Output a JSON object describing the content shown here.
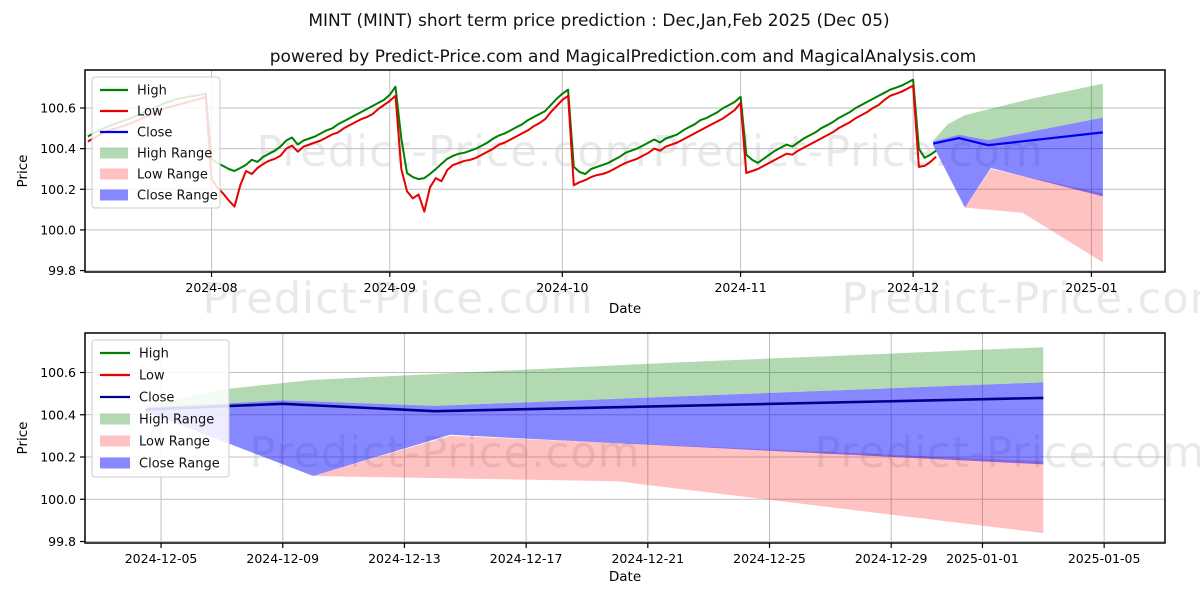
{
  "figure": {
    "title": "MINT (MINT) short term price prediction : Dec,Jan,Feb 2025 (Dec 05)",
    "subtitle": "powered by Predict-Price.com and MagicalPrediction.com and MagicalAnalysis.com",
    "watermark": "Predict-Price.com",
    "background": "#ffffff"
  },
  "colors": {
    "high_line": "#008000",
    "low_line": "#e60000",
    "close_line_top_chart": "#0000ee",
    "close_line_bottom_chart": "#00008b",
    "high_range_fill": "rgba(0,128,0,0.30)",
    "low_range_fill": "rgba(255,0,0,0.24)",
    "close_range_fill": "rgba(0,0,255,0.47)",
    "grid": "#bfbfbf",
    "frame": "#000000",
    "watermark": "#e9e9e9"
  },
  "chart_data": [
    {
      "type": "line",
      "name": "price-history-with-prediction",
      "xlabel": "Date",
      "ylabel": "Price",
      "x_unit": "days since 2024-07-10",
      "xlim_days": [
        0,
        187.8
      ],
      "ylim": [
        99.793,
        100.787
      ],
      "grid": true,
      "legend_position": "upper-left",
      "close_color": "#0000ee",
      "legend": [
        "High",
        "Low",
        "Close",
        "High Range",
        "Low Range",
        "Close Range"
      ],
      "yticks": [
        {
          "label": "100.6",
          "v": 100.6
        },
        {
          "label": "100.4",
          "v": 100.4
        },
        {
          "label": "100.2",
          "v": 100.2
        },
        {
          "label": "100.0",
          "v": 100.0
        },
        {
          "label": "99.8",
          "v": 99.8
        }
      ],
      "xticks": [
        {
          "label": "2024-08",
          "d": 22
        },
        {
          "label": "2024-09",
          "d": 53
        },
        {
          "label": "2024-10",
          "d": 83
        },
        {
          "label": "2024-11",
          "d": 114
        },
        {
          "label": "2024-12",
          "d": 144
        },
        {
          "label": "2025-01",
          "d": 175
        }
      ],
      "series": {
        "high_low_history": [
          [
            0.5,
            100.46,
            100.435
          ],
          [
            2,
            100.485,
            100.46
          ],
          [
            4,
            100.51,
            100.49
          ],
          [
            6,
            100.53,
            100.505
          ],
          [
            8,
            100.55,
            100.525
          ],
          [
            10,
            100.575,
            100.55
          ],
          [
            12,
            100.6,
            100.575
          ],
          [
            14,
            100.625,
            100.6
          ],
          [
            16,
            100.645,
            100.615
          ],
          [
            18,
            100.655,
            100.63
          ],
          [
            20,
            100.665,
            100.645
          ],
          [
            21,
            100.67,
            100.655
          ],
          [
            22,
            100.35,
            100.25
          ],
          [
            23,
            100.33,
            100.21
          ],
          [
            24,
            100.315,
            100.18
          ],
          [
            25,
            100.3,
            100.145
          ],
          [
            26,
            100.29,
            100.115
          ],
          [
            27,
            100.305,
            100.22
          ],
          [
            28,
            100.32,
            100.29
          ],
          [
            29,
            100.345,
            100.275
          ],
          [
            30,
            100.335,
            100.305
          ],
          [
            31,
            100.36,
            100.325
          ],
          [
            32,
            100.375,
            100.34
          ],
          [
            33,
            100.39,
            100.35
          ],
          [
            34,
            100.41,
            100.365
          ],
          [
            35,
            100.44,
            100.4
          ],
          [
            36,
            100.455,
            100.415
          ],
          [
            37,
            100.42,
            100.385
          ],
          [
            38,
            100.44,
            100.41
          ],
          [
            39,
            100.45,
            100.42
          ],
          [
            40,
            100.46,
            100.43
          ],
          [
            41,
            100.475,
            100.44
          ],
          [
            42,
            100.49,
            100.455
          ],
          [
            43,
            100.5,
            100.47
          ],
          [
            44,
            100.52,
            100.48
          ],
          [
            45,
            100.535,
            100.5
          ],
          [
            46,
            100.55,
            100.515
          ],
          [
            47,
            100.565,
            100.53
          ],
          [
            48,
            100.58,
            100.545
          ],
          [
            49,
            100.595,
            100.555
          ],
          [
            50,
            100.61,
            100.57
          ],
          [
            51,
            100.625,
            100.595
          ],
          [
            52,
            100.64,
            100.615
          ],
          [
            53,
            100.665,
            100.635
          ],
          [
            54,
            100.705,
            100.66
          ],
          [
            55,
            100.45,
            100.3
          ],
          [
            56,
            100.28,
            100.19
          ],
          [
            57,
            100.26,
            100.155
          ],
          [
            58,
            100.25,
            100.175
          ],
          [
            59,
            100.255,
            100.09
          ],
          [
            60,
            100.275,
            100.21
          ],
          [
            61,
            100.3,
            100.255
          ],
          [
            62,
            100.325,
            100.24
          ],
          [
            63,
            100.35,
            100.295
          ],
          [
            64,
            100.365,
            100.32
          ],
          [
            65,
            100.375,
            100.33
          ],
          [
            66,
            100.38,
            100.34
          ],
          [
            67,
            100.39,
            100.345
          ],
          [
            68,
            100.4,
            100.355
          ],
          [
            69,
            100.415,
            100.37
          ],
          [
            70,
            100.43,
            100.385
          ],
          [
            71,
            100.45,
            100.4
          ],
          [
            72,
            100.465,
            100.42
          ],
          [
            73,
            100.475,
            100.43
          ],
          [
            74,
            100.49,
            100.445
          ],
          [
            75,
            100.505,
            100.46
          ],
          [
            76,
            100.52,
            100.475
          ],
          [
            77,
            100.54,
            100.49
          ],
          [
            78,
            100.555,
            100.51
          ],
          [
            79,
            100.57,
            100.525
          ],
          [
            80,
            100.585,
            100.545
          ],
          [
            81,
            100.615,
            100.58
          ],
          [
            82,
            100.645,
            100.61
          ],
          [
            83,
            100.67,
            100.64
          ],
          [
            84,
            100.69,
            100.66
          ],
          [
            85,
            100.31,
            100.22
          ],
          [
            86,
            100.285,
            100.235
          ],
          [
            87,
            100.275,
            100.245
          ],
          [
            88,
            100.3,
            100.26
          ],
          [
            89,
            100.31,
            100.27
          ],
          [
            90,
            100.32,
            100.275
          ],
          [
            91,
            100.33,
            100.285
          ],
          [
            92,
            100.345,
            100.3
          ],
          [
            93,
            100.36,
            100.315
          ],
          [
            94,
            100.38,
            100.33
          ],
          [
            95,
            100.39,
            100.34
          ],
          [
            96,
            100.4,
            100.35
          ],
          [
            97,
            100.415,
            100.365
          ],
          [
            98,
            100.43,
            100.38
          ],
          [
            99,
            100.445,
            100.4
          ],
          [
            100,
            100.43,
            100.39
          ],
          [
            101,
            100.45,
            100.41
          ],
          [
            102,
            100.46,
            100.42
          ],
          [
            103,
            100.47,
            100.43
          ],
          [
            104,
            100.49,
            100.445
          ],
          [
            105,
            100.505,
            100.46
          ],
          [
            106,
            100.52,
            100.475
          ],
          [
            107,
            100.54,
            100.49
          ],
          [
            108,
            100.55,
            100.505
          ],
          [
            109,
            100.565,
            100.52
          ],
          [
            110,
            100.58,
            100.535
          ],
          [
            111,
            100.6,
            100.55
          ],
          [
            112,
            100.615,
            100.57
          ],
          [
            113,
            100.63,
            100.59
          ],
          [
            114,
            100.655,
            100.625
          ],
          [
            115,
            100.37,
            100.28
          ],
          [
            116,
            100.345,
            100.29
          ],
          [
            117,
            100.33,
            100.3
          ],
          [
            118,
            100.35,
            100.315
          ],
          [
            119,
            100.37,
            100.33
          ],
          [
            120,
            100.39,
            100.345
          ],
          [
            121,
            100.405,
            100.36
          ],
          [
            122,
            100.42,
            100.375
          ],
          [
            123,
            100.41,
            100.37
          ],
          [
            124,
            100.43,
            100.39
          ],
          [
            125,
            100.45,
            100.405
          ],
          [
            126,
            100.465,
            100.42
          ],
          [
            127,
            100.48,
            100.435
          ],
          [
            128,
            100.5,
            100.45
          ],
          [
            129,
            100.515,
            100.465
          ],
          [
            130,
            100.53,
            100.48
          ],
          [
            131,
            100.55,
            100.5
          ],
          [
            132,
            100.565,
            100.515
          ],
          [
            133,
            100.58,
            100.53
          ],
          [
            134,
            100.6,
            100.55
          ],
          [
            135,
            100.615,
            100.565
          ],
          [
            136,
            100.63,
            100.58
          ],
          [
            137,
            100.645,
            100.6
          ],
          [
            138,
            100.66,
            100.615
          ],
          [
            139,
            100.675,
            100.64
          ],
          [
            140,
            100.69,
            100.66
          ],
          [
            141,
            100.7,
            100.67
          ],
          [
            142,
            100.71,
            100.68
          ],
          [
            143,
            100.725,
            100.695
          ],
          [
            144,
            100.74,
            100.71
          ],
          [
            145,
            100.4,
            100.31
          ],
          [
            146,
            100.355,
            100.315
          ],
          [
            147,
            100.37,
            100.335
          ],
          [
            148,
            100.39,
            100.36
          ]
        ],
        "close_prediction": [
          [
            147.5,
            100.425
          ],
          [
            152,
            100.452
          ],
          [
            157,
            100.417
          ],
          [
            177,
            100.48
          ]
        ],
        "high_range": {
          "upper": [
            [
              147.5,
              100.44
            ],
            [
              150,
              100.52
            ],
            [
              153,
              100.565
            ],
            [
              158,
              100.6
            ],
            [
              165,
              100.648
            ],
            [
              177,
              100.72
            ]
          ],
          "lower": [
            [
              147.5,
              100.435
            ],
            [
              152,
              100.468
            ],
            [
              157,
              100.442
            ],
            [
              177,
              100.553
            ]
          ]
        },
        "low_range": {
          "upper": [
            [
              153,
              100.11
            ],
            [
              157.5,
              100.3
            ],
            [
              177,
              100.18
            ]
          ],
          "lower": [
            [
              153,
              100.11
            ],
            [
              163,
              100.085
            ],
            [
              177,
              99.84
            ]
          ]
        },
        "close_range": {
          "upper": [
            [
              147.5,
              100.435
            ],
            [
              152,
              100.468
            ],
            [
              157,
              100.442
            ],
            [
              177,
              100.553
            ]
          ],
          "lower": [
            [
              147.5,
              100.415
            ],
            [
              153,
              100.11
            ],
            [
              157.5,
              100.305
            ],
            [
              177,
              100.165
            ]
          ]
        }
      }
    },
    {
      "type": "line",
      "name": "prediction-zoom-dec-to-jan",
      "xlabel": "Date",
      "ylabel": "Price",
      "x_unit": "days since 2024-07-10",
      "xlim_days": [
        145.5,
        181
      ],
      "ylim": [
        99.793,
        100.787
      ],
      "grid": true,
      "legend_position": "upper-left",
      "close_color": "#00008b",
      "legend": [
        "High",
        "Low",
        "Close",
        "High Range",
        "Low Range",
        "Close Range"
      ],
      "yticks": [
        {
          "label": "100.6",
          "v": 100.6
        },
        {
          "label": "100.4",
          "v": 100.4
        },
        {
          "label": "100.2",
          "v": 100.2
        },
        {
          "label": "100.0",
          "v": 100.0
        },
        {
          "label": "99.8",
          "v": 99.8
        }
      ],
      "xticks": [
        {
          "label": "2024-12-05",
          "d": 148
        },
        {
          "label": "2024-12-09",
          "d": 152
        },
        {
          "label": "2024-12-13",
          "d": 156
        },
        {
          "label": "2024-12-17",
          "d": 160
        },
        {
          "label": "2024-12-21",
          "d": 164
        },
        {
          "label": "2024-12-25",
          "d": 168
        },
        {
          "label": "2024-12-29",
          "d": 172
        },
        {
          "label": "2025-01-01",
          "d": 175
        },
        {
          "label": "2025-01-05",
          "d": 179
        }
      ],
      "series": {
        "close_prediction": [
          [
            147.5,
            100.425
          ],
          [
            152,
            100.452
          ],
          [
            157,
            100.417
          ],
          [
            177,
            100.48
          ]
        ],
        "high_range": {
          "upper": [
            [
              147.5,
              100.44
            ],
            [
              150,
              100.52
            ],
            [
              153,
              100.565
            ],
            [
              158,
              100.6
            ],
            [
              165,
              100.648
            ],
            [
              177,
              100.72
            ]
          ],
          "lower": [
            [
              147.5,
              100.435
            ],
            [
              152,
              100.468
            ],
            [
              157,
              100.442
            ],
            [
              177,
              100.553
            ]
          ]
        },
        "low_range": {
          "upper": [
            [
              153,
              100.11
            ],
            [
              157.5,
              100.3
            ],
            [
              177,
              100.18
            ]
          ],
          "lower": [
            [
              153,
              100.11
            ],
            [
              163,
              100.085
            ],
            [
              177,
              99.84
            ]
          ]
        },
        "close_range": {
          "upper": [
            [
              147.5,
              100.435
            ],
            [
              152,
              100.468
            ],
            [
              157,
              100.442
            ],
            [
              177,
              100.553
            ]
          ],
          "lower": [
            [
              147.5,
              100.415
            ],
            [
              153,
              100.11
            ],
            [
              157.5,
              100.305
            ],
            [
              177,
              100.165
            ]
          ]
        }
      }
    }
  ]
}
